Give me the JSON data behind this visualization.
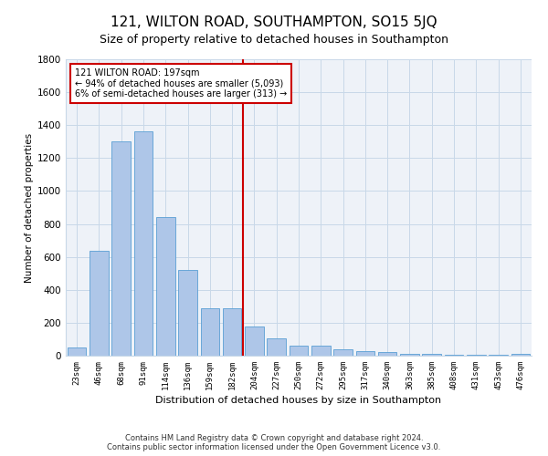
{
  "title": "121, WILTON ROAD, SOUTHAMPTON, SO15 5JQ",
  "subtitle": "Size of property relative to detached houses in Southampton",
  "xlabel": "Distribution of detached houses by size in Southampton",
  "ylabel": "Number of detached properties",
  "footer": "Contains HM Land Registry data © Crown copyright and database right 2024.\nContains public sector information licensed under the Open Government Licence v3.0.",
  "bar_labels": [
    "23sqm",
    "46sqm",
    "68sqm",
    "91sqm",
    "114sqm",
    "136sqm",
    "159sqm",
    "182sqm",
    "204sqm",
    "227sqm",
    "250sqm",
    "272sqm",
    "295sqm",
    "317sqm",
    "340sqm",
    "363sqm",
    "385sqm",
    "408sqm",
    "431sqm",
    "453sqm",
    "476sqm"
  ],
  "bar_values": [
    50,
    638,
    1300,
    1362,
    840,
    520,
    290,
    290,
    180,
    105,
    60,
    60,
    40,
    30,
    20,
    13,
    10,
    5,
    3,
    3,
    12
  ],
  "bar_color": "#aec6e8",
  "bar_edge_color": "#5a9fd4",
  "vline_color": "#cc0000",
  "annotation_text": "121 WILTON ROAD: 197sqm\n← 94% of detached houses are smaller (5,093)\n6% of semi-detached houses are larger (313) →",
  "annotation_box_color": "#cc0000",
  "ylim": [
    0,
    1800
  ],
  "yticks": [
    0,
    200,
    400,
    600,
    800,
    1000,
    1200,
    1400,
    1600,
    1800
  ],
  "grid_color": "#c8d8e8",
  "background_color": "#eef2f8",
  "title_fontsize": 11,
  "subtitle_fontsize": 9,
  "footer_fontsize": 6
}
